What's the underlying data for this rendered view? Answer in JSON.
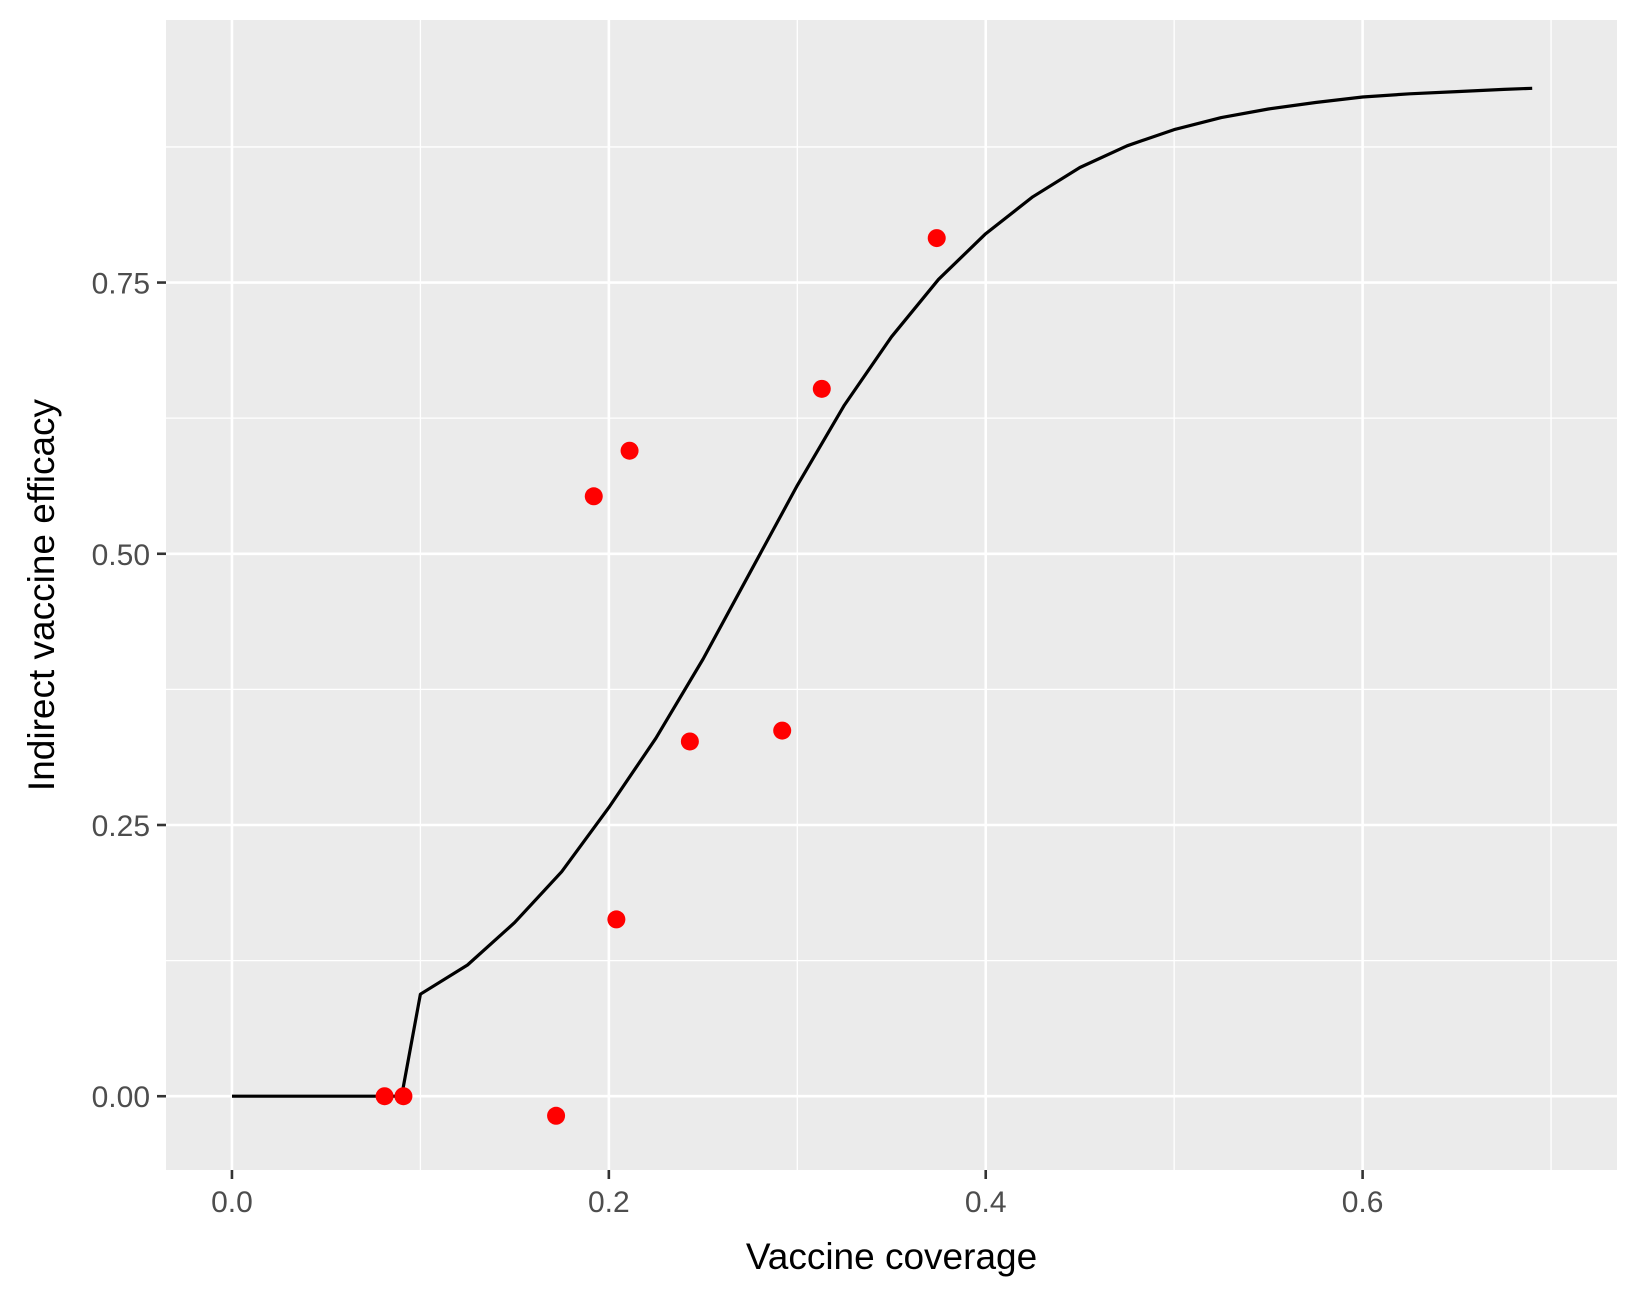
{
  "chart_data": {
    "type": "scatter",
    "title": "",
    "xlabel": "Vaccine coverage",
    "ylabel": "Indirect vaccine efficacy",
    "xlim": [
      -0.035,
      0.735
    ],
    "ylim": [
      -0.068,
      0.992
    ],
    "x_ticks": [
      0.0,
      0.2,
      0.4,
      0.6
    ],
    "x_tick_labels": [
      "0.0",
      "0.2",
      "0.4",
      "0.6"
    ],
    "x_minor_ticks": [
      0.1,
      0.3,
      0.5,
      0.7
    ],
    "y_ticks": [
      0.0,
      0.25,
      0.5,
      0.75
    ],
    "y_tick_labels": [
      "0.00",
      "0.25",
      "0.50",
      "0.75"
    ],
    "y_minor_ticks": [
      0.125,
      0.375,
      0.625,
      0.875
    ],
    "grid": true,
    "legend": "none",
    "colors": {
      "panel_background": "#ebebeb",
      "grid": "#ffffff",
      "points": "#ff0000",
      "curve": "#000000",
      "tick_label": "#4d4d4d",
      "axis_title": "#000000"
    },
    "series": [
      {
        "type": "scatter",
        "points": [
          {
            "x": 0.081,
            "y": 0.0
          },
          {
            "x": 0.091,
            "y": 0.0
          },
          {
            "x": 0.172,
            "y": -0.018
          },
          {
            "x": 0.192,
            "y": 0.553
          },
          {
            "x": 0.204,
            "y": 0.163
          },
          {
            "x": 0.211,
            "y": 0.595
          },
          {
            "x": 0.243,
            "y": 0.327
          },
          {
            "x": 0.292,
            "y": 0.337
          },
          {
            "x": 0.313,
            "y": 0.652
          },
          {
            "x": 0.374,
            "y": 0.791
          }
        ]
      },
      {
        "type": "line",
        "points": [
          {
            "x": 0.0,
            "y": 0.0
          },
          {
            "x": 0.09,
            "y": 0.0
          },
          {
            "x": 0.1,
            "y": 0.094
          },
          {
            "x": 0.125,
            "y": 0.121
          },
          {
            "x": 0.15,
            "y": 0.16
          },
          {
            "x": 0.175,
            "y": 0.207
          },
          {
            "x": 0.2,
            "y": 0.266
          },
          {
            "x": 0.225,
            "y": 0.33
          },
          {
            "x": 0.25,
            "y": 0.403
          },
          {
            "x": 0.275,
            "y": 0.483
          },
          {
            "x": 0.3,
            "y": 0.563
          },
          {
            "x": 0.325,
            "y": 0.637
          },
          {
            "x": 0.35,
            "y": 0.7
          },
          {
            "x": 0.375,
            "y": 0.753
          },
          {
            "x": 0.4,
            "y": 0.795
          },
          {
            "x": 0.425,
            "y": 0.829
          },
          {
            "x": 0.45,
            "y": 0.856
          },
          {
            "x": 0.475,
            "y": 0.876
          },
          {
            "x": 0.5,
            "y": 0.891
          },
          {
            "x": 0.525,
            "y": 0.902
          },
          {
            "x": 0.55,
            "y": 0.91
          },
          {
            "x": 0.575,
            "y": 0.916
          },
          {
            "x": 0.6,
            "y": 0.921
          },
          {
            "x": 0.625,
            "y": 0.924
          },
          {
            "x": 0.65,
            "y": 0.926
          },
          {
            "x": 0.675,
            "y": 0.928
          },
          {
            "x": 0.69,
            "y": 0.929
          }
        ]
      }
    ]
  }
}
